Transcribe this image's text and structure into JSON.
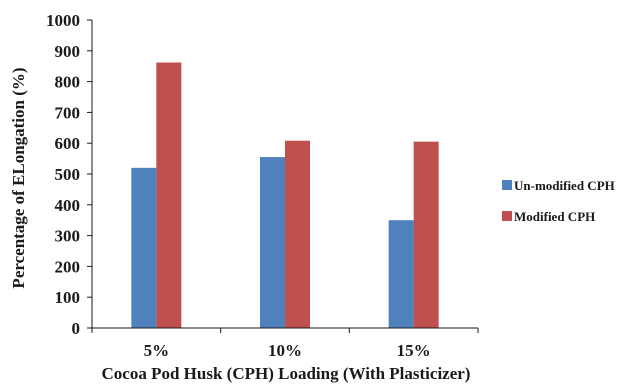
{
  "chart_data": {
    "type": "bar",
    "title": "",
    "xlabel": "Cocoa Pod Husk (CPH) Loading (With Plasticizer)",
    "ylabel": "Percentage of ELongation (%)",
    "categories": [
      "5%",
      "10%",
      "15%"
    ],
    "ylim": [
      0,
      1000
    ],
    "yticks": [
      "0",
      "100",
      "200",
      "300",
      "400",
      "500",
      "600",
      "700",
      "800",
      "900",
      "1000"
    ],
    "grid": false,
    "legend_position": "right",
    "series": [
      {
        "name": "Un-modified CPH",
        "color": "#4f81bd",
        "values": [
          520,
          555,
          350
        ]
      },
      {
        "name": "Modified CPH",
        "color": "#c0504d",
        "values": [
          862,
          608,
          605
        ]
      }
    ]
  }
}
